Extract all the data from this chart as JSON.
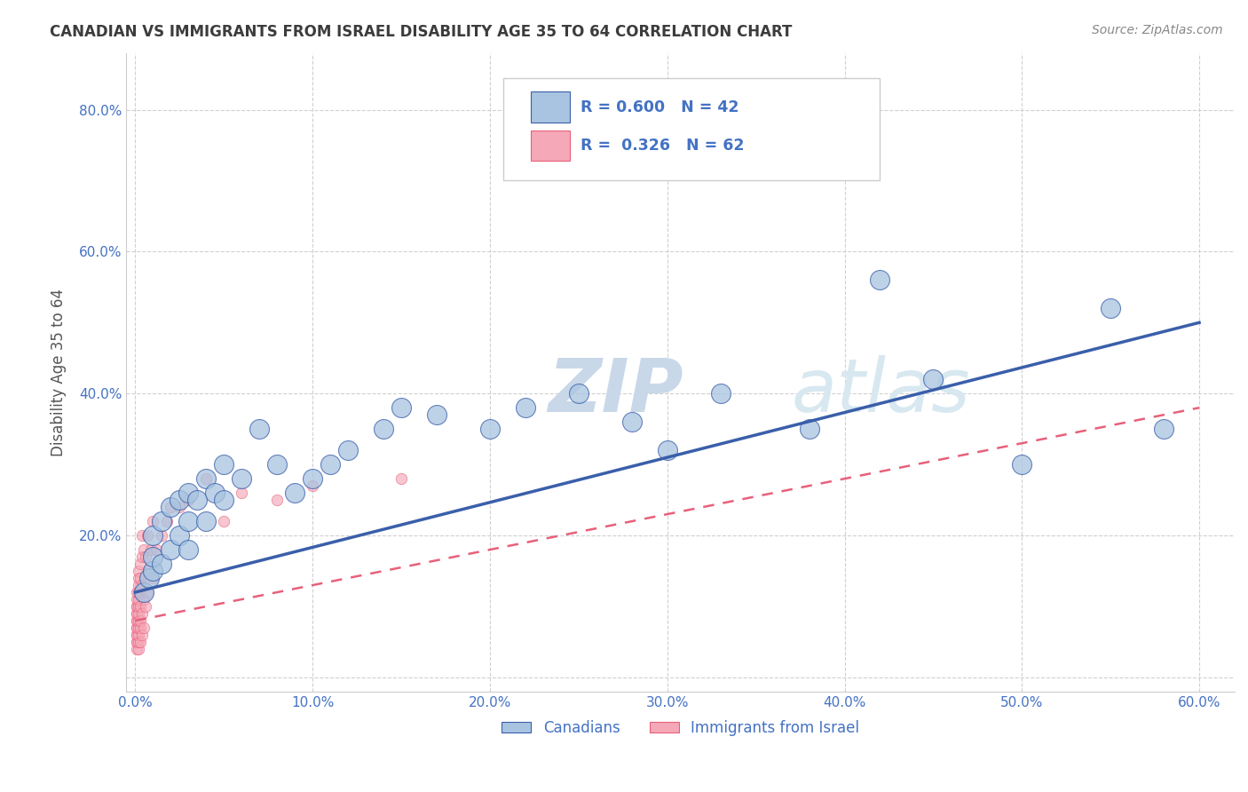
{
  "title": "CANADIAN VS IMMIGRANTS FROM ISRAEL DISABILITY AGE 35 TO 64 CORRELATION CHART",
  "source_text": "Source: ZipAtlas.com",
  "ylabel": "Disability Age 35 to 64",
  "xlim": [
    -0.005,
    0.62
  ],
  "ylim": [
    -0.02,
    0.88
  ],
  "xticks": [
    0.0,
    0.1,
    0.2,
    0.3,
    0.4,
    0.5,
    0.6
  ],
  "yticks": [
    0.0,
    0.2,
    0.4,
    0.6,
    0.8
  ],
  "xtick_labels": [
    "0.0%",
    "10.0%",
    "20.0%",
    "30.0%",
    "40.0%",
    "50.0%",
    "60.0%"
  ],
  "ytick_labels": [
    "",
    "20.0%",
    "40.0%",
    "60.0%",
    "80.0%"
  ],
  "canadians_color": "#a8c4e0",
  "israel_color": "#f4a8b8",
  "trendline_canadian_color": "#3a5faa",
  "trendline_israel_color": "#e8607a",
  "watermark_text": "ZIPatlas",
  "watermark_color": "#dce8f0",
  "background_color": "#ffffff",
  "grid_color": "#d0d0d0",
  "title_color": "#3c3c3c",
  "source_color": "#888888",
  "axis_label_color": "#555555",
  "tick_label_color": "#4472c4",
  "legend_label_color": "#4472c4",
  "canadians_x": [
    0.005,
    0.008,
    0.01,
    0.01,
    0.01,
    0.015,
    0.015,
    0.02,
    0.02,
    0.025,
    0.025,
    0.03,
    0.03,
    0.03,
    0.035,
    0.04,
    0.04,
    0.045,
    0.05,
    0.05,
    0.06,
    0.07,
    0.08,
    0.09,
    0.1,
    0.11,
    0.12,
    0.14,
    0.15,
    0.17,
    0.2,
    0.22,
    0.25,
    0.28,
    0.3,
    0.33,
    0.38,
    0.42,
    0.45,
    0.5,
    0.55,
    0.58
  ],
  "canadians_y": [
    0.12,
    0.14,
    0.15,
    0.17,
    0.2,
    0.16,
    0.22,
    0.18,
    0.24,
    0.2,
    0.25,
    0.18,
    0.22,
    0.26,
    0.25,
    0.22,
    0.28,
    0.26,
    0.25,
    0.3,
    0.28,
    0.35,
    0.3,
    0.26,
    0.28,
    0.3,
    0.32,
    0.35,
    0.38,
    0.37,
    0.35,
    0.38,
    0.4,
    0.36,
    0.32,
    0.4,
    0.35,
    0.56,
    0.42,
    0.3,
    0.52,
    0.35
  ],
  "israel_x": [
    0.001,
    0.001,
    0.001,
    0.001,
    0.001,
    0.001,
    0.001,
    0.001,
    0.001,
    0.001,
    0.001,
    0.001,
    0.001,
    0.001,
    0.001,
    0.002,
    0.002,
    0.002,
    0.002,
    0.002,
    0.002,
    0.002,
    0.002,
    0.002,
    0.002,
    0.002,
    0.002,
    0.003,
    0.003,
    0.003,
    0.003,
    0.003,
    0.003,
    0.003,
    0.004,
    0.004,
    0.004,
    0.004,
    0.004,
    0.005,
    0.005,
    0.005,
    0.006,
    0.006,
    0.007,
    0.007,
    0.008,
    0.009,
    0.01,
    0.01,
    0.012,
    0.015,
    0.018,
    0.02,
    0.025,
    0.03,
    0.04,
    0.05,
    0.06,
    0.08,
    0.1,
    0.15
  ],
  "israel_y": [
    0.04,
    0.05,
    0.05,
    0.06,
    0.06,
    0.07,
    0.07,
    0.08,
    0.08,
    0.09,
    0.09,
    0.1,
    0.1,
    0.11,
    0.12,
    0.04,
    0.05,
    0.06,
    0.07,
    0.08,
    0.09,
    0.1,
    0.11,
    0.12,
    0.13,
    0.14,
    0.15,
    0.05,
    0.07,
    0.08,
    0.1,
    0.12,
    0.14,
    0.16,
    0.06,
    0.09,
    0.13,
    0.17,
    0.2,
    0.07,
    0.11,
    0.18,
    0.1,
    0.17,
    0.12,
    0.2,
    0.15,
    0.18,
    0.14,
    0.22,
    0.18,
    0.2,
    0.22,
    0.24,
    0.24,
    0.25,
    0.28,
    0.22,
    0.26,
    0.25,
    0.27,
    0.28
  ],
  "trend_canadian_x0": 0.0,
  "trend_canadian_y0": 0.12,
  "trend_canadian_x1": 0.6,
  "trend_canadian_y1": 0.5,
  "trend_israel_x0": 0.0,
  "trend_israel_y0": 0.08,
  "trend_israel_x1": 0.6,
  "trend_israel_y1": 0.38
}
